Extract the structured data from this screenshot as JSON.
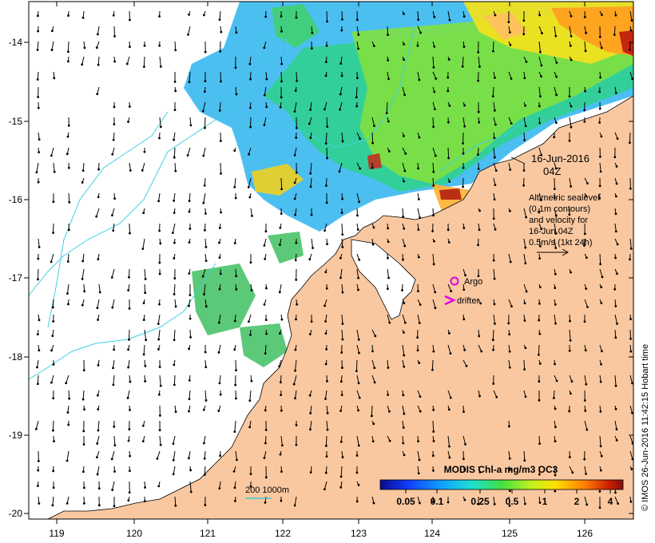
{
  "map": {
    "lon_ticks": [
      "119",
      "120",
      "121",
      "122",
      "123",
      "124",
      "125",
      "126"
    ],
    "lat_ticks": [
      "-14",
      "-15",
      "-16",
      "-17",
      "-18",
      "-19",
      "-20"
    ]
  },
  "annotation": {
    "date": "16-Jun-2016",
    "time": "04Z",
    "lines": [
      "Altimetric sealevel",
      "(0.1m contours)",
      "and velocity for",
      "16-Jun 04Z",
      "0.5m/s (1kt 24h)"
    ]
  },
  "legend": {
    "argo": "Argo",
    "drifter": "drifter",
    "argo_color": "#e000e0",
    "drifter_color": "#e000e0"
  },
  "scale": {
    "label": "200  1000m",
    "color": "#40c8d8"
  },
  "colorbar": {
    "title": "MODIS Chl-a mg/m3 OC3",
    "ticks": [
      "0.05",
      "0.1",
      "0.25",
      "0.5",
      "1",
      "2",
      "4"
    ]
  },
  "credit": "© IMOS 26-Jun-2016 11:42:15 Hobart time",
  "colors": {
    "land": "#fac8a0",
    "contour": "#40d0e0"
  }
}
